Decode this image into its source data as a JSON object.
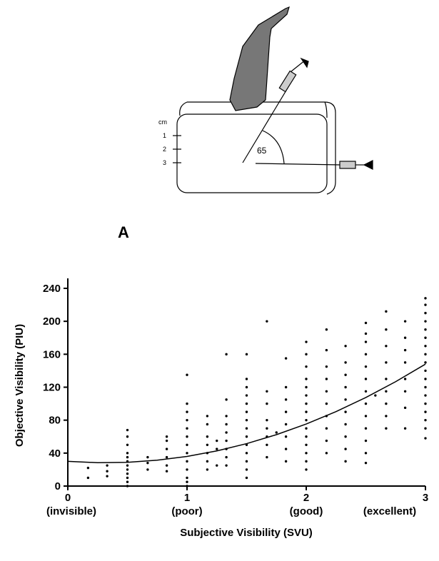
{
  "diagram": {
    "unit": "cm",
    "depth_labels": [
      "1",
      "2",
      "3"
    ],
    "angle_label": "65",
    "panel_label": "A"
  },
  "chart_data": {
    "type": "scatter",
    "x_label": "Subjective Visibility (SVU)",
    "y_label": "Objective Visibility (PIU)",
    "xlim": [
      0,
      3
    ],
    "xticks": [
      0,
      1,
      2,
      3
    ],
    "xtick_captions": [
      "(invisible)",
      "(poor)",
      "(good)",
      "(excellent)"
    ],
    "ylim": [
      0,
      240
    ],
    "yticks": [
      0,
      40,
      80,
      120,
      160,
      200,
      240
    ],
    "series": [
      {
        "color": "#000000",
        "x": [
          0.17,
          0.17,
          0.33,
          0.33,
          0.33,
          0.5,
          0.5,
          0.5,
          0.5,
          0.5,
          0.5,
          0.5,
          0.5,
          0.5,
          0.5,
          0.5,
          0.5,
          0.67,
          0.67,
          0.67,
          0.83,
          0.83,
          0.83,
          0.83,
          0.83,
          0.83,
          1,
          1,
          1,
          1,
          1,
          1,
          1,
          1,
          1,
          1,
          1,
          1,
          1,
          1.17,
          1.17,
          1.17,
          1.17,
          1.17,
          1.17,
          1.17,
          1.25,
          1.25,
          1.25,
          1.33,
          1.33,
          1.33,
          1.33,
          1.33,
          1.33,
          1.33,
          1.33,
          1.33,
          1.5,
          1.5,
          1.5,
          1.5,
          1.5,
          1.5,
          1.5,
          1.5,
          1.5,
          1.5,
          1.5,
          1.5,
          1.5,
          1.5,
          1.67,
          1.67,
          1.67,
          1.67,
          1.67,
          1.67,
          1.67,
          1.67,
          1.75,
          1.83,
          1.83,
          1.83,
          1.83,
          1.83,
          1.83,
          1.83,
          1.83,
          2,
          2,
          2,
          2,
          2,
          2,
          2,
          2,
          2,
          2,
          2,
          2,
          2,
          2,
          2,
          2.17,
          2.17,
          2.17,
          2.17,
          2.17,
          2.17,
          2.17,
          2.17,
          2.17,
          2.17,
          2.33,
          2.33,
          2.33,
          2.33,
          2.33,
          2.33,
          2.33,
          2.33,
          2.33,
          2.33,
          2.5,
          2.5,
          2.5,
          2.5,
          2.5,
          2.5,
          2.5,
          2.5,
          2.5,
          2.5,
          2.5,
          2.5,
          2.5,
          2.58,
          2.67,
          2.67,
          2.67,
          2.67,
          2.67,
          2.67,
          2.67,
          2.67,
          2.67,
          2.83,
          2.83,
          2.83,
          2.83,
          2.83,
          2.83,
          2.83,
          2.83,
          3,
          3,
          3,
          3,
          3,
          3,
          3,
          3,
          3,
          3,
          3,
          3,
          3,
          3,
          3,
          3,
          3,
          3
        ],
        "values": [
          10,
          22,
          12,
          18,
          25,
          0,
          5,
          10,
          15,
          20,
          25,
          30,
          35,
          40,
          50,
          60,
          68,
          20,
          28,
          35,
          18,
          25,
          35,
          45,
          55,
          60,
          0,
          5,
          10,
          20,
          30,
          40,
          50,
          60,
          70,
          80,
          90,
          100,
          135,
          20,
          30,
          40,
          50,
          60,
          75,
          85,
          25,
          45,
          55,
          25,
          35,
          45,
          55,
          65,
          75,
          85,
          105,
          160,
          10,
          20,
          30,
          40,
          50,
          60,
          70,
          80,
          90,
          100,
          110,
          120,
          130,
          160,
          35,
          50,
          60,
          70,
          80,
          100,
          115,
          200,
          65,
          30,
          45,
          60,
          75,
          90,
          105,
          120,
          155,
          20,
          30,
          40,
          50,
          60,
          70,
          80,
          90,
          100,
          110,
          120,
          130,
          145,
          160,
          175,
          40,
          55,
          70,
          85,
          100,
          115,
          130,
          145,
          165,
          190,
          30,
          45,
          60,
          75,
          90,
          105,
          120,
          135,
          150,
          170,
          28,
          40,
          55,
          70,
          85,
          100,
          115,
          130,
          145,
          160,
          175,
          185,
          198,
          110,
          70,
          85,
          100,
          115,
          130,
          150,
          170,
          190,
          212,
          70,
          95,
          115,
          130,
          150,
          165,
          180,
          200,
          58,
          70,
          80,
          90,
          100,
          110,
          120,
          130,
          140,
          150,
          160,
          170,
          180,
          190,
          200,
          210,
          220,
          228
        ]
      },
      {
        "type": "line",
        "color": "#000000",
        "x": [
          0,
          0.25,
          0.5,
          0.75,
          1,
          1.25,
          1.5,
          1.75,
          2,
          2.25,
          2.5,
          2.75,
          3
        ],
        "values": [
          30,
          28.4,
          28.8,
          31.4,
          36,
          42.7,
          51.5,
          62.4,
          75.3,
          90.4,
          107.5,
          126.7,
          148
        ]
      }
    ]
  }
}
